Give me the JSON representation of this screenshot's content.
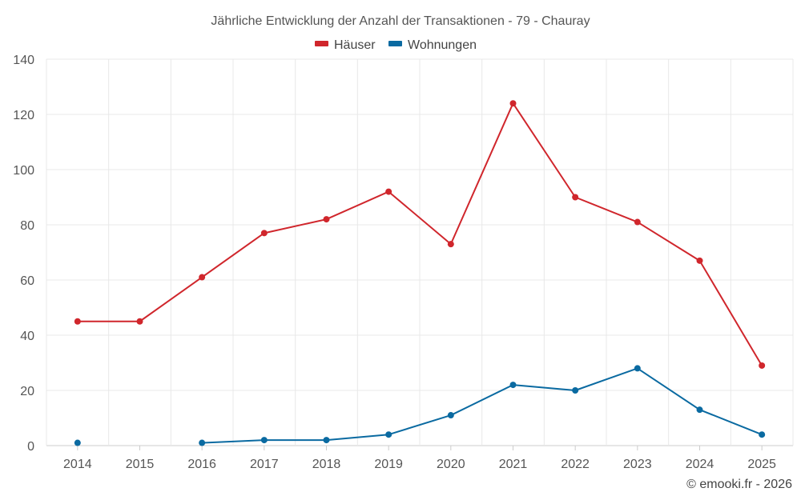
{
  "chart_data": {
    "type": "line",
    "title": "Jährliche Entwicklung der Anzahl der Transaktionen - 79 - Chauray",
    "categories": [
      "2014",
      "2015",
      "2016",
      "2017",
      "2018",
      "2019",
      "2020",
      "2021",
      "2022",
      "2023",
      "2024",
      "2025"
    ],
    "ylim": [
      0,
      140
    ],
    "yticks": [
      0,
      20,
      40,
      60,
      80,
      100,
      120,
      140
    ],
    "grid": true,
    "legend_position": "top-center",
    "series": [
      {
        "name": "Häuser",
        "color": "#d0262c",
        "values": [
          45,
          45,
          61,
          77,
          82,
          92,
          73,
          124,
          90,
          81,
          67,
          29
        ]
      },
      {
        "name": "Wohnungen",
        "color": "#0a6aa1",
        "values": [
          1,
          null,
          1,
          2,
          2,
          4,
          11,
          22,
          20,
          28,
          13,
          4
        ]
      }
    ],
    "xlabel": "",
    "ylabel": ""
  },
  "credit": "© emooki.fr - 2026"
}
